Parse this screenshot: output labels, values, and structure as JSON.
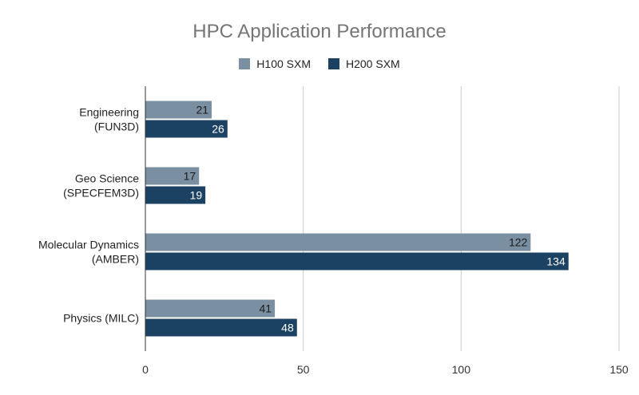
{
  "chart_data": {
    "type": "bar",
    "orientation": "horizontal",
    "title": "HPC Application Performance",
    "categories": [
      [
        "Engineering",
        "(FUN3D)"
      ],
      [
        "Geo Science",
        "(SPECFEM3D)"
      ],
      [
        "Molecular Dynamics",
        "(AMBER)"
      ],
      [
        "Physics (MILC)"
      ]
    ],
    "series": [
      {
        "name": "H100 SXM",
        "color": "#7b8fa3",
        "label_color": "#1a1a1a",
        "values": [
          21,
          17,
          122,
          41
        ]
      },
      {
        "name": "H200 SXM",
        "color": "#1c4263",
        "label_color": "#ffffff",
        "values": [
          26,
          19,
          134,
          48
        ]
      }
    ],
    "xlim": [
      0,
      150
    ],
    "xticks": [
      0,
      50,
      100,
      150
    ],
    "grid": true,
    "legend_position": "top-center",
    "data_labels": true
  }
}
